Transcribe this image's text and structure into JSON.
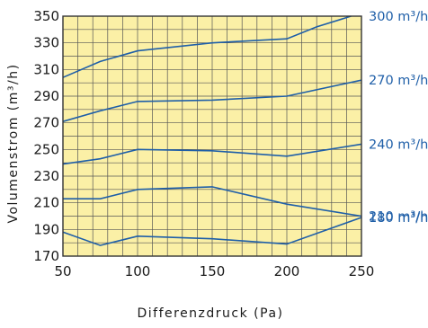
{
  "chart_data": {
    "type": "line",
    "xlabel": "Differenzdruck (Pa)",
    "ylabel": "Volumenstrom (m³/h)",
    "xlim": [
      50,
      250
    ],
    "ylim": [
      170,
      350
    ],
    "x_ticks": [
      50,
      100,
      150,
      200,
      250
    ],
    "y_ticks": [
      170,
      190,
      210,
      230,
      250,
      270,
      290,
      310,
      330,
      350
    ],
    "x_grid_step": 10,
    "y_grid_step": 10,
    "grid": true,
    "background_color": "#fbf0a6",
    "line_color": "#1f5fa8",
    "series": [
      {
        "name": "300 m³/h",
        "points": [
          [
            50,
            304
          ],
          [
            75,
            316
          ],
          [
            100,
            324
          ],
          [
            150,
            330
          ],
          [
            200,
            333
          ],
          [
            220,
            342
          ],
          [
            243,
            350
          ]
        ]
      },
      {
        "name": "270 m³/h",
        "points": [
          [
            50,
            271
          ],
          [
            75,
            279
          ],
          [
            100,
            286
          ],
          [
            150,
            287
          ],
          [
            200,
            290
          ],
          [
            250,
            302
          ]
        ]
      },
      {
        "name": "240 m³/h",
        "points": [
          [
            50,
            239
          ],
          [
            75,
            243
          ],
          [
            100,
            250
          ],
          [
            150,
            249
          ],
          [
            200,
            245
          ],
          [
            250,
            254
          ]
        ]
      },
      {
        "name": "210 m³/h",
        "points": [
          [
            50,
            213
          ],
          [
            75,
            213
          ],
          [
            100,
            220
          ],
          [
            150,
            222
          ],
          [
            200,
            209
          ],
          [
            250,
            200
          ]
        ]
      },
      {
        "name": "180 m³/h",
        "points": [
          [
            50,
            188
          ],
          [
            75,
            178
          ],
          [
            100,
            185
          ],
          [
            150,
            183
          ],
          [
            200,
            179
          ],
          [
            250,
            199
          ]
        ]
      }
    ]
  }
}
